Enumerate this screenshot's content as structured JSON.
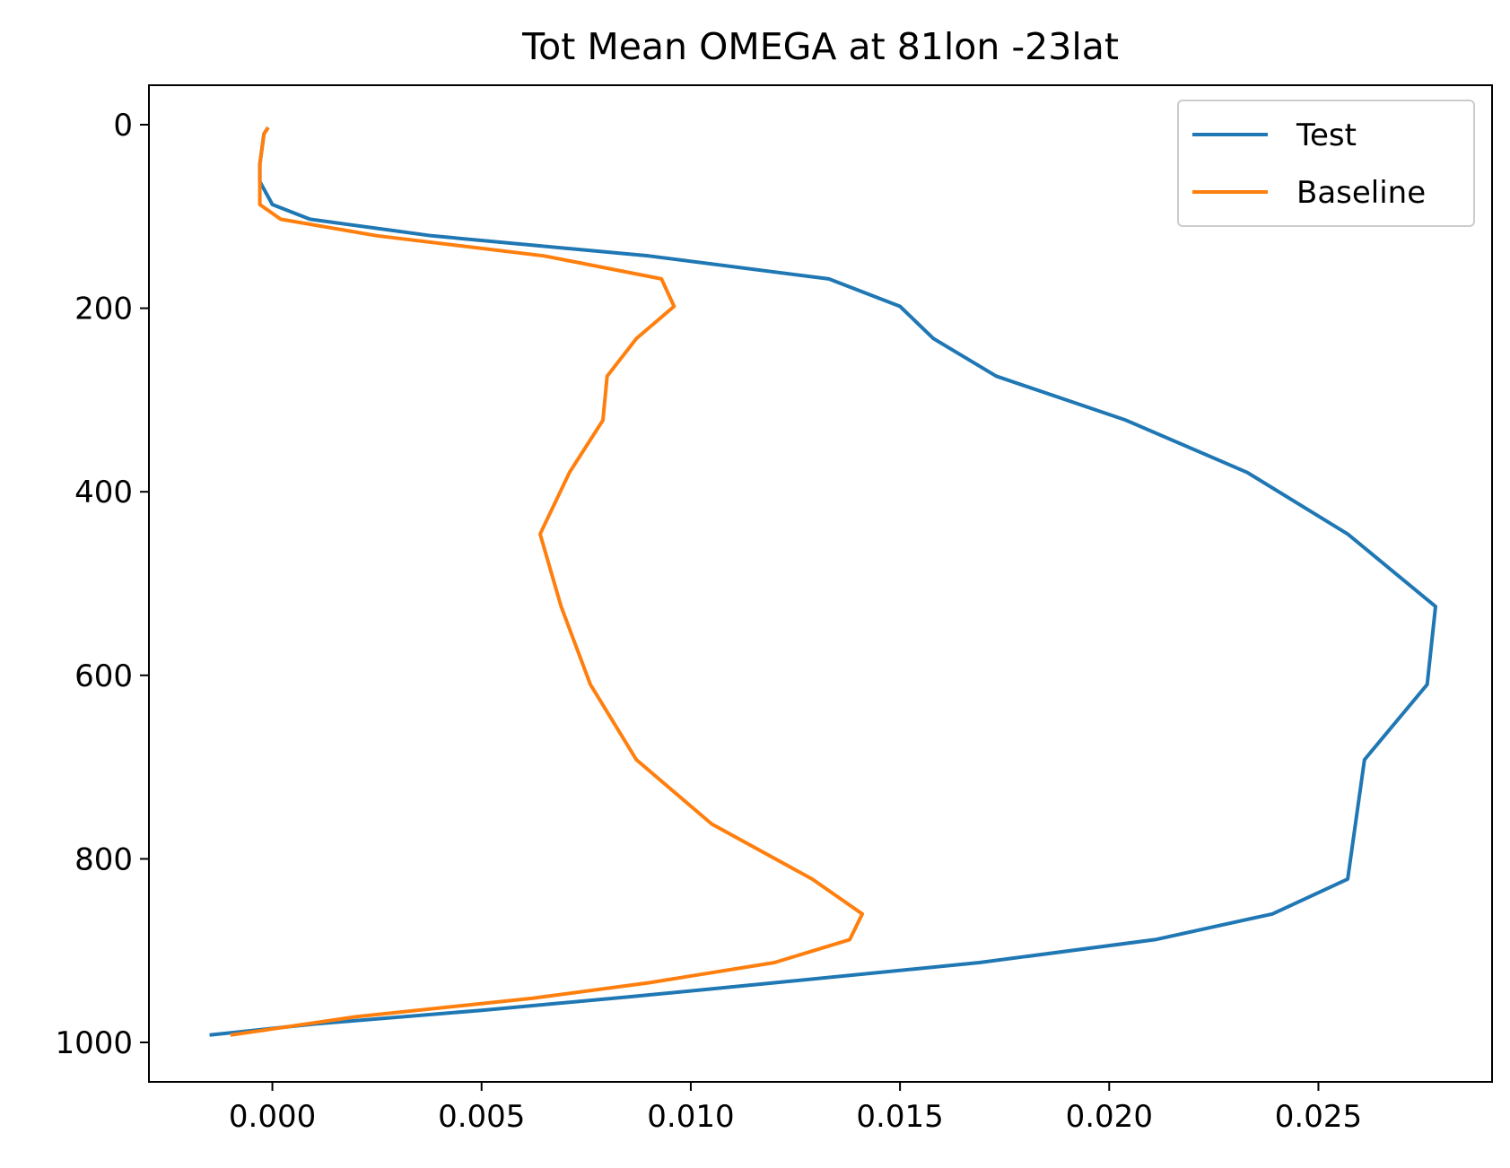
{
  "chart_data": {
    "type": "line",
    "title": "Tot Mean OMEGA at 81lon -23lat",
    "xlabel": "",
    "ylabel": "",
    "xlim": [
      -0.00295,
      0.02915
    ],
    "ylim": [
      1043,
      -43
    ],
    "y_inverted": true,
    "grid": false,
    "legend_position": "upper right",
    "xticks": [
      0.0,
      0.005,
      0.01,
      0.015,
      0.02,
      0.025
    ],
    "xtick_labels": [
      "0.000",
      "0.005",
      "0.010",
      "0.015",
      "0.020",
      "0.025"
    ],
    "yticks": [
      0,
      200,
      400,
      600,
      800,
      1000
    ],
    "ytick_labels": [
      "0",
      "200",
      "400",
      "600",
      "800",
      "1000"
    ],
    "series": [
      {
        "name": "Test",
        "color": "#1f77b4",
        "points": [
          {
            "x": -0.0001,
            "y": 3
          },
          {
            "x": -0.0002,
            "y": 10
          },
          {
            "x": -0.0003,
            "y": 43
          },
          {
            "x": -0.0003,
            "y": 62
          },
          {
            "x": 0.0,
            "y": 87
          },
          {
            "x": 0.0009,
            "y": 103
          },
          {
            "x": 0.0038,
            "y": 121
          },
          {
            "x": 0.009,
            "y": 143
          },
          {
            "x": 0.0133,
            "y": 168
          },
          {
            "x": 0.015,
            "y": 198
          },
          {
            "x": 0.0158,
            "y": 233
          },
          {
            "x": 0.0173,
            "y": 274
          },
          {
            "x": 0.0204,
            "y": 322
          },
          {
            "x": 0.0233,
            "y": 379
          },
          {
            "x": 0.0257,
            "y": 446
          },
          {
            "x": 0.0278,
            "y": 525
          },
          {
            "x": 0.0276,
            "y": 610
          },
          {
            "x": 0.0261,
            "y": 692
          },
          {
            "x": 0.0257,
            "y": 822
          },
          {
            "x": 0.0239,
            "y": 860
          },
          {
            "x": 0.0211,
            "y": 888
          },
          {
            "x": 0.0169,
            "y": 913
          },
          {
            "x": 0.012,
            "y": 935
          },
          {
            "x": 0.0086,
            "y": 950
          },
          {
            "x": 0.005,
            "y": 965
          },
          {
            "x": 0.001,
            "y": 980
          },
          {
            "x": -0.0015,
            "y": 992
          }
        ]
      },
      {
        "name": "Baseline",
        "color": "#ff7f0e",
        "points": [
          {
            "x": -0.0001,
            "y": 3
          },
          {
            "x": -0.0002,
            "y": 10
          },
          {
            "x": -0.0003,
            "y": 43
          },
          {
            "x": -0.0003,
            "y": 62
          },
          {
            "x": -0.0003,
            "y": 87
          },
          {
            "x": 0.0002,
            "y": 103
          },
          {
            "x": 0.0025,
            "y": 121
          },
          {
            "x": 0.0065,
            "y": 143
          },
          {
            "x": 0.0093,
            "y": 168
          },
          {
            "x": 0.0096,
            "y": 198
          },
          {
            "x": 0.0087,
            "y": 233
          },
          {
            "x": 0.008,
            "y": 274
          },
          {
            "x": 0.0079,
            "y": 322
          },
          {
            "x": 0.0071,
            "y": 379
          },
          {
            "x": 0.0064,
            "y": 446
          },
          {
            "x": 0.0069,
            "y": 525
          },
          {
            "x": 0.0076,
            "y": 610
          },
          {
            "x": 0.0087,
            "y": 692
          },
          {
            "x": 0.0105,
            "y": 762
          },
          {
            "x": 0.0129,
            "y": 822
          },
          {
            "x": 0.0141,
            "y": 860
          },
          {
            "x": 0.0138,
            "y": 888
          },
          {
            "x": 0.012,
            "y": 913
          },
          {
            "x": 0.009,
            "y": 935
          },
          {
            "x": 0.0062,
            "y": 952
          },
          {
            "x": 0.002,
            "y": 972
          },
          {
            "x": -0.001,
            "y": 992
          }
        ]
      }
    ]
  }
}
